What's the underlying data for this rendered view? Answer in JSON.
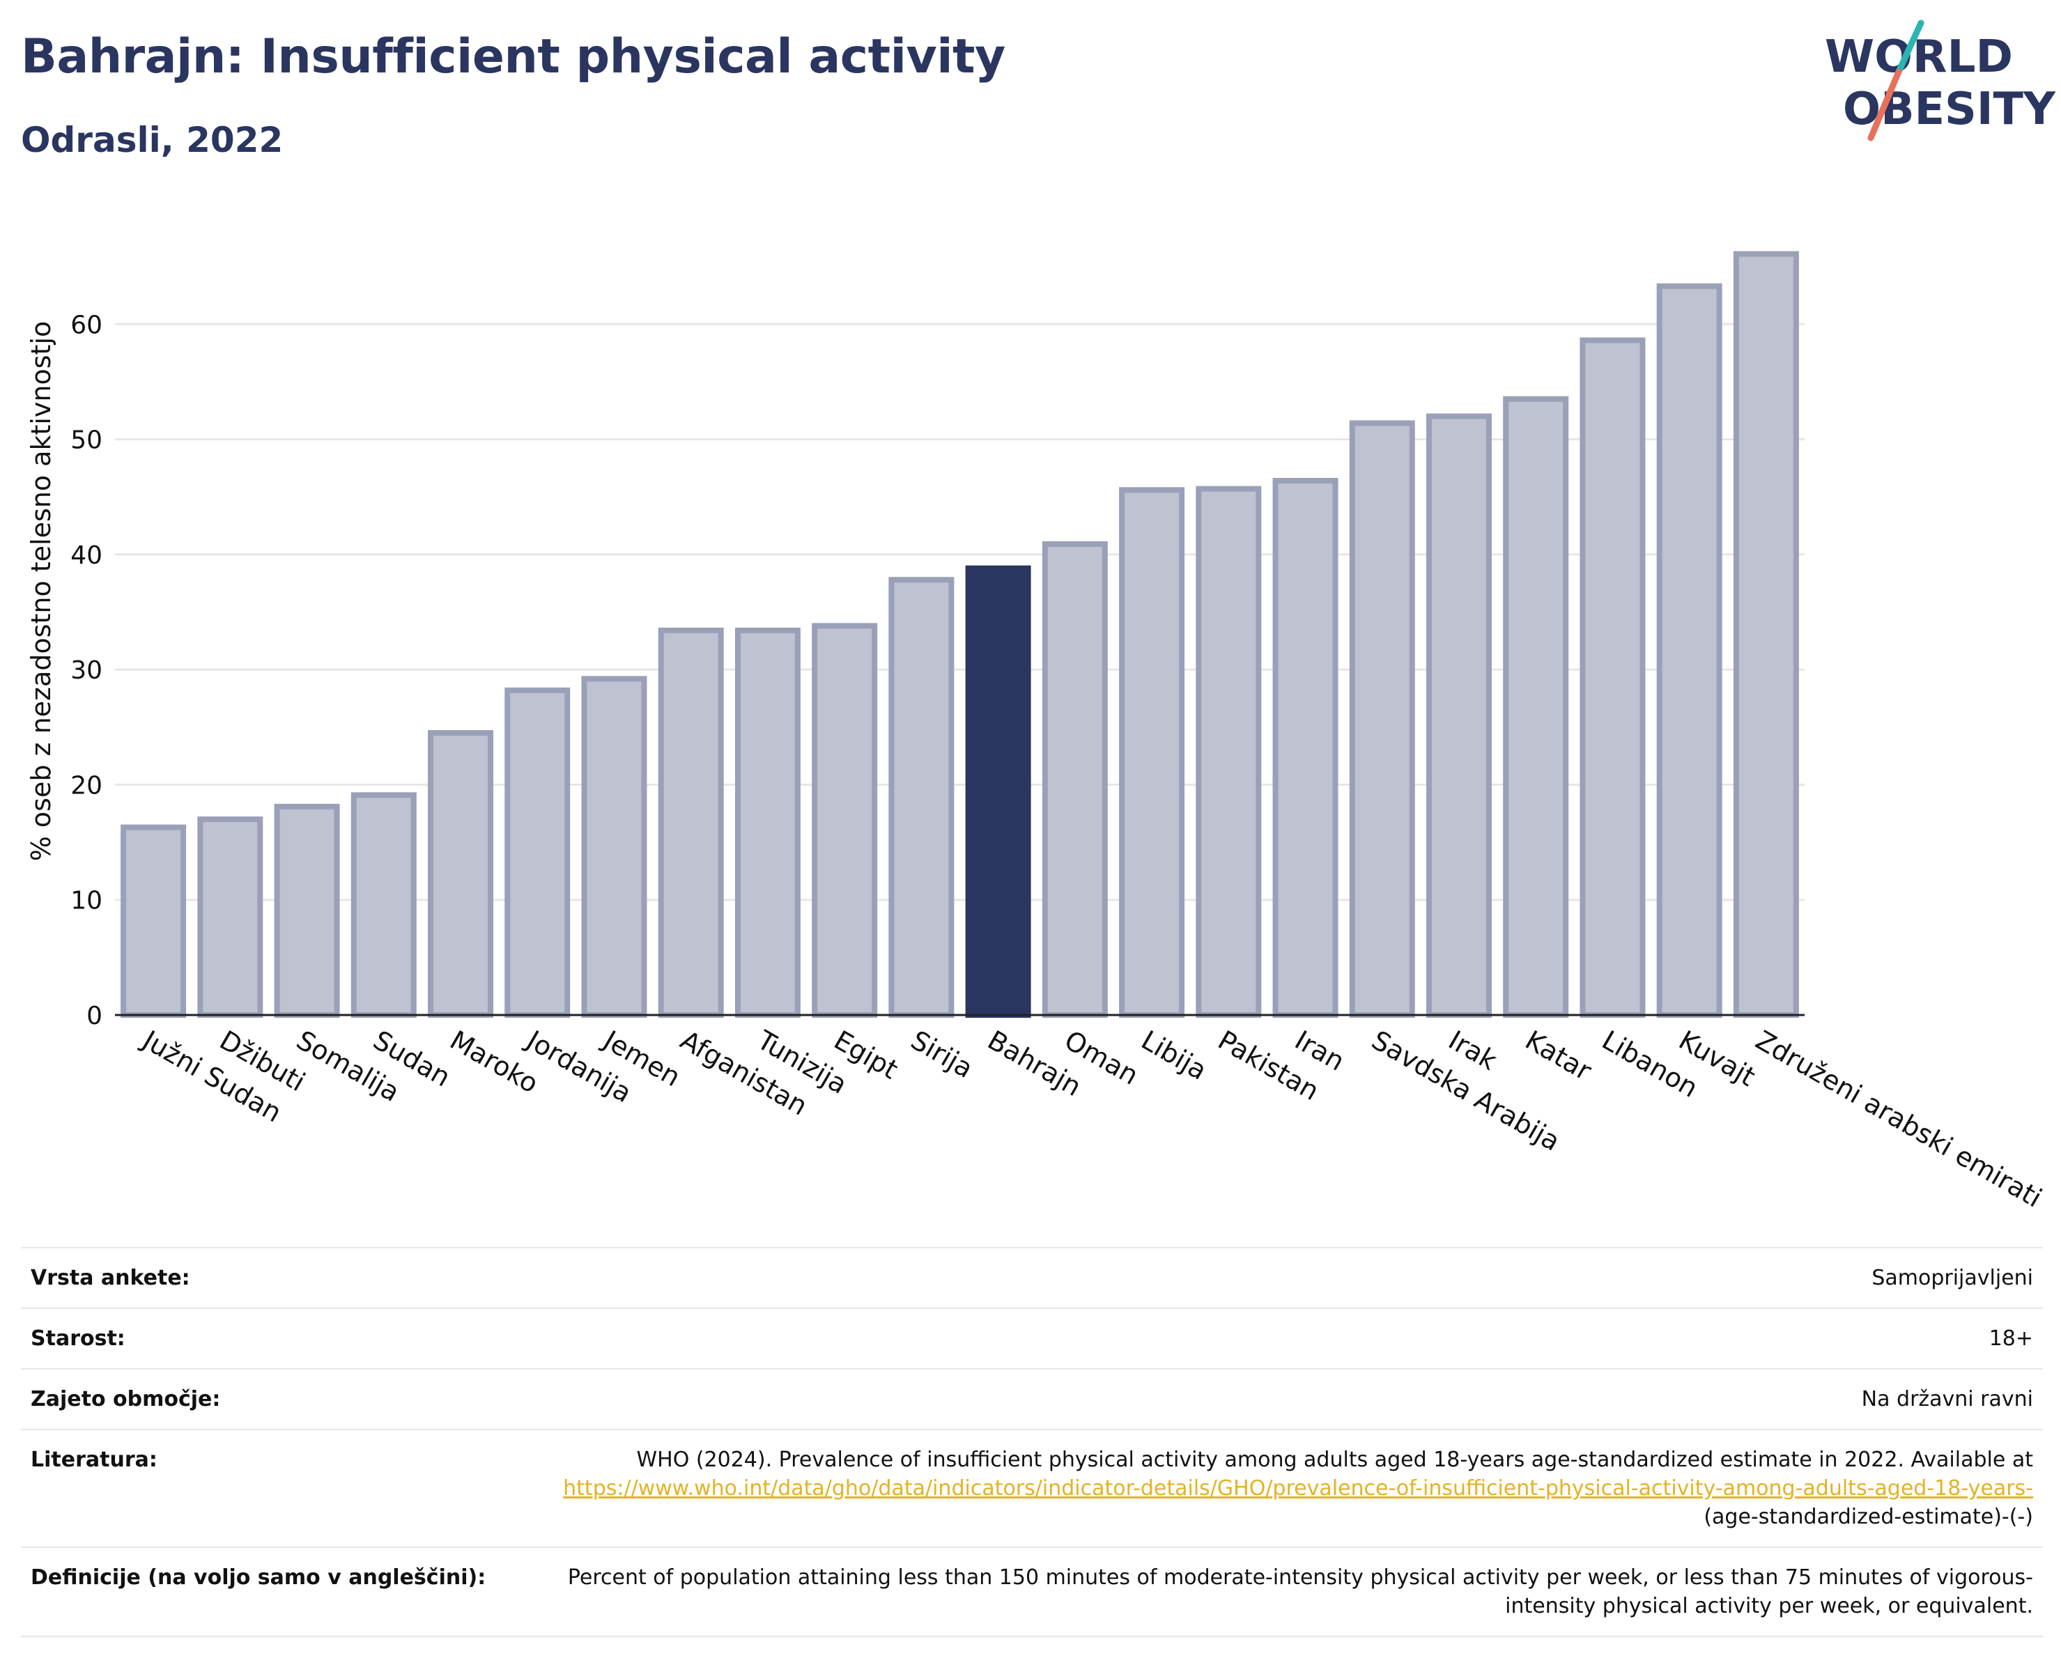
{
  "header": {
    "title": "Bahrajn: Insufficient physical activity",
    "subtitle": "Odrasli, 2022"
  },
  "logo": {
    "line1": "WORLD",
    "line2": "OBESITY"
  },
  "colors": {
    "title": "#2a3560",
    "bar_default": "#bec2d1",
    "bar_border": "#9aa0b7",
    "bar_highlight": "#2a3560",
    "logo_slash_top": "#2ab5b0",
    "logo_slash_bottom": "#e8715c"
  },
  "chart_data": {
    "type": "bar",
    "title": "Bahrajn: Insufficient physical activity",
    "subtitle": "Odrasli, 2022",
    "ylabel": "% oseb z nezadostno telesno aktivnostjo",
    "xlabel": "",
    "ylim": [
      0,
      70
    ],
    "yticks": [
      0,
      10,
      20,
      30,
      40,
      50,
      60
    ],
    "grid": true,
    "highlight": "Bahrajn",
    "categories": [
      "Južni Sudan",
      "Džibuti",
      "Somalija",
      "Sudan",
      "Maroko",
      "Jordanija",
      "Jemen",
      "Afganistan",
      "Tunizija",
      "Egipt",
      "Sirija",
      "Bahrajn",
      "Oman",
      "Libija",
      "Pakistan",
      "Iran",
      "Savdska Arabija",
      "Irak",
      "Katar",
      "Libanon",
      "Kuvajt",
      "Združeni arabski emirati"
    ],
    "values": [
      16.3,
      17.0,
      18.1,
      19.1,
      24.5,
      28.2,
      29.2,
      33.4,
      33.4,
      33.8,
      37.8,
      38.8,
      40.9,
      45.6,
      45.7,
      46.4,
      51.4,
      52.0,
      53.5,
      58.6,
      63.3,
      66.1
    ]
  },
  "meta": {
    "rows": [
      {
        "label": "Vrsta ankete:",
        "value": "Samoprijavljeni"
      },
      {
        "label": "Starost:",
        "value": "18+"
      },
      {
        "label": "Zajeto območje:",
        "value": "Na državni ravni"
      }
    ],
    "literature": {
      "label": "Literatura:",
      "text": "WHO (2024). Prevalence of insufficient physical activity among adults aged 18-years age-standardized estimate in 2022. Available at",
      "link": "https://www.who.int/data/gho/data/indicators/indicator-details/GHO/prevalence-of-insufficient-physical-activity-among-adults-aged-18-years-",
      "suffix": "(age-standardized-estimate)-(-)"
    },
    "definition": {
      "label": "Definicije (na voljo samo v angleščini):",
      "value": "Percent of population attaining less than 150 minutes of moderate-intensity physical activity per week, or less than 75 minutes of vigorous-intensity physical activity per week, or equivalent."
    }
  }
}
